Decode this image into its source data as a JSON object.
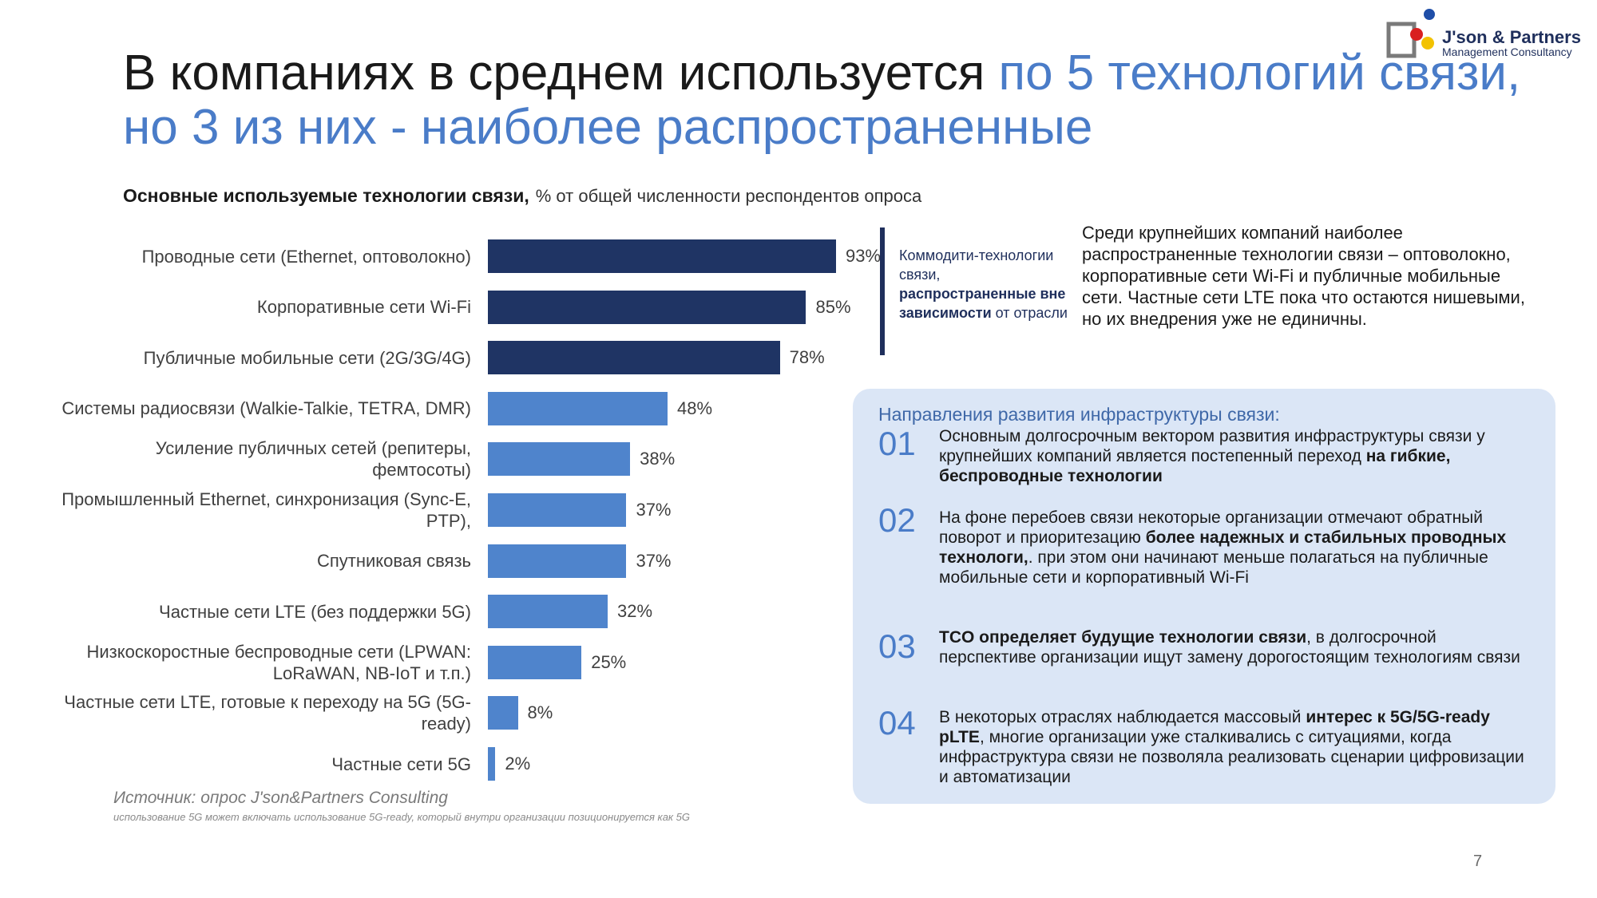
{
  "logo": {
    "name": "J'son & Partners",
    "sub": "Management Consultancy"
  },
  "title": {
    "part1": "В компаниях в среднем используется ",
    "part2": "по 5 технологий связи, но 3 из них - наиболее распространенные"
  },
  "chart_data": {
    "type": "bar",
    "orientation": "horizontal",
    "title": "Основные используемые технологии связи,",
    "subtitle": "% от общей численности респондентов опроса",
    "categories": [
      "Проводные сети (Ethernet, оптоволокно)",
      "Корпоративные сети Wi-Fi",
      "Публичные мобильные сети (2G/3G/4G)",
      "Системы радиосвязи (Walkie-Talkie, TETRA, DMR)",
      "Усиление публичных сетей (репитеры, фемтосоты)",
      "Промышленный Ethernet, синхронизация (Sync-E, PTP),",
      "Спутниковая связь",
      "Частные сети LTE (без поддержки 5G)",
      "Низкоскоростные беспроводные сети (LPWAN: LoRaWAN, NB-IoT и т.п.)",
      "Частные сети LTE, готовые к переходу на 5G (5G-ready)",
      "Частные сети 5G"
    ],
    "values": [
      93,
      85,
      78,
      48,
      38,
      37,
      37,
      32,
      25,
      8,
      2
    ],
    "value_labels": [
      "93%",
      "85%",
      "78%",
      "48%",
      "38%",
      "37%",
      "37%",
      "32%",
      "25%",
      "8%",
      "2%"
    ],
    "groups": [
      "commodity",
      "commodity",
      "commodity",
      "other",
      "other",
      "other",
      "other",
      "other",
      "other",
      "other",
      "other"
    ],
    "colors": {
      "commodity": "#1f3464",
      "other": "#4f84cc"
    },
    "xlim": [
      0,
      100
    ]
  },
  "source": "Источник: опрос J'son&Partners Consulting",
  "note": "использование 5G может включать использование 5G-ready, который внутри организации позиционируется как 5G",
  "commodity": {
    "line1": "Коммодити-технологии связи, ",
    "bold": "распространенные вне зависимости",
    "line2": " от отрасли"
  },
  "summary": "Среди крупнейших компаний наиболее распространенные технологии связи – оптоволокно, корпоративные сети Wi-Fi и публичные мобильные сети. Частные сети LTE пока что остаются нишевыми, но их внедрения уже не единичны.",
  "panel": {
    "title": "Направления развития инфраструктуры связи:",
    "items": [
      {
        "num": "01",
        "pre": "Основным долгосрочным вектором развития инфраструктуры связи у крупнейших компаний является постепенный переход ",
        "bold": "на гибкие, беспроводные технологии",
        "post": ""
      },
      {
        "num": "02",
        "pre": "На фоне перебоев связи некоторые организации отмечают обратный поворот и приоритезацию ",
        "bold": "более надежных и стабильных проводных технологи,",
        "post": ". при этом они начинают меньше полагаться на публичные мобильные сети и корпоративный Wi-Fi"
      },
      {
        "num": "03",
        "pre": "",
        "bold": "TCO определяет будущие технологии связи",
        "post": ", в долгосрочной перспективе организации ищут замену дорогостоящим технологиям связи"
      },
      {
        "num": "04",
        "pre": "В некоторых отраслях наблюдается массовый ",
        "bold": "интерес к 5G/5G-ready pLTE",
        "post": ", многие организации уже сталкивались с ситуациями, когда инфраструктура связи не позволяла реализовать сценарии цифровизации и автоматизации"
      }
    ]
  },
  "page_number": "7"
}
